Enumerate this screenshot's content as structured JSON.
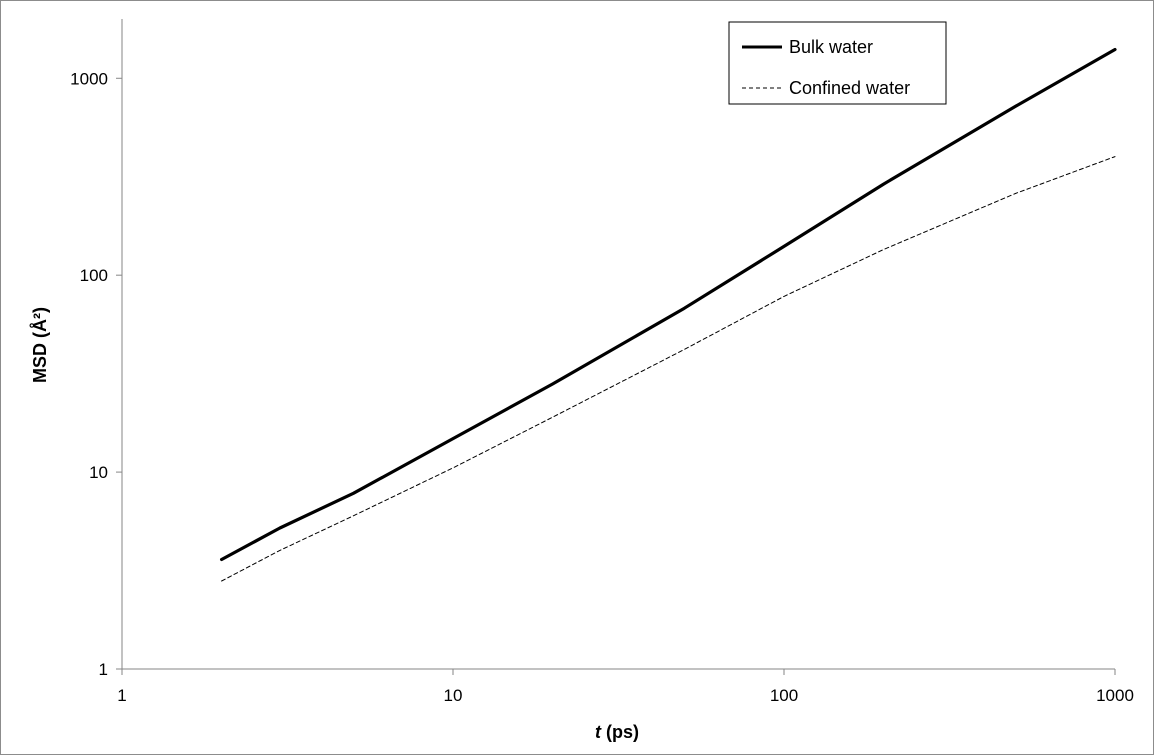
{
  "chart_data": {
    "type": "line",
    "title": "",
    "xlabel": "t (ps)",
    "ylabel": "MSD (Å²)",
    "x_scale": "log",
    "y_scale": "log",
    "xlim": [
      1,
      1000
    ],
    "ylim": [
      1,
      2000
    ],
    "x_ticks": [
      "1",
      "10",
      "100",
      "1000"
    ],
    "y_ticks": [
      "1",
      "10",
      "100",
      "1000"
    ],
    "grid": false,
    "legend_position": "top-right",
    "series": [
      {
        "name": "Bulk water",
        "style": "solid-thick",
        "color": "#000000",
        "x": [
          2,
          3,
          5,
          10,
          20,
          50,
          100,
          200,
          500,
          1000
        ],
        "y": [
          3.6,
          5.2,
          7.8,
          14.8,
          28,
          68,
          140,
          290,
          720,
          1400
        ]
      },
      {
        "name": "Confined water",
        "style": "dashed-thin",
        "color": "#000000",
        "x": [
          2,
          3,
          5,
          10,
          20,
          50,
          100,
          200,
          500,
          1000
        ],
        "y": [
          2.8,
          4.0,
          6.0,
          10.5,
          19,
          42,
          78,
          135,
          260,
          400
        ]
      }
    ]
  }
}
